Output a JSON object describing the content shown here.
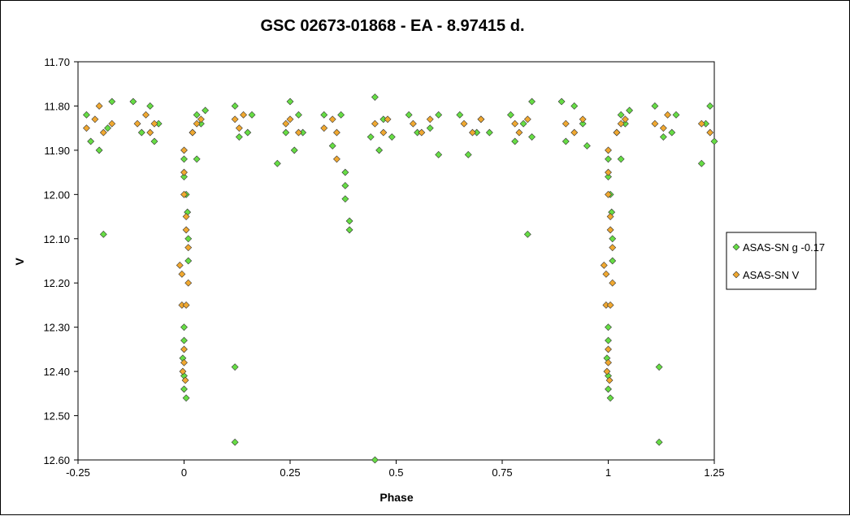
{
  "chart_data": {
    "type": "scatter",
    "title": "GSC 02673-01868  - EA - 8.97415 d.",
    "xlabel": "Phase",
    "ylabel": "V",
    "xlim": [
      -0.25,
      1.25
    ],
    "ylim": [
      11.7,
      12.6
    ],
    "y_inverted": true,
    "grid": false,
    "legend_position": "right",
    "x_tick_labels": [
      "-0.25",
      "0",
      "0.25",
      "0.5",
      "0.75",
      "1",
      "1.25"
    ],
    "y_tick_labels": [
      "11.70",
      "11.80",
      "11.90",
      "12.00",
      "12.10",
      "12.20",
      "12.30",
      "12.40",
      "12.50",
      "12.60"
    ],
    "series": [
      {
        "name": "ASAS-SN g -0.17",
        "color": "#66dd44",
        "marker": "diamond",
        "points": [
          [
            -0.23,
            11.82
          ],
          [
            -0.22,
            11.88
          ],
          [
            -0.2,
            11.9
          ],
          [
            -0.19,
            12.09
          ],
          [
            -0.18,
            11.85
          ],
          [
            -0.17,
            11.79
          ],
          [
            -0.12,
            11.79
          ],
          [
            -0.1,
            11.86
          ],
          [
            -0.08,
            11.8
          ],
          [
            -0.07,
            11.88
          ],
          [
            -0.06,
            11.84
          ],
          [
            0.0,
            11.92
          ],
          [
            0.0,
            11.96
          ],
          [
            0.005,
            12.0
          ],
          [
            0.008,
            12.04
          ],
          [
            0.01,
            12.1
          ],
          [
            0.01,
            12.15
          ],
          [
            0.0,
            12.3
          ],
          [
            0.0,
            12.33
          ],
          [
            -0.003,
            12.37
          ],
          [
            0.0,
            12.41
          ],
          [
            0.0,
            12.44
          ],
          [
            0.005,
            12.46
          ],
          [
            0.02,
            11.86
          ],
          [
            0.03,
            11.82
          ],
          [
            0.04,
            11.84
          ],
          [
            0.05,
            11.81
          ],
          [
            0.03,
            11.92
          ],
          [
            0.12,
            11.8
          ],
          [
            0.13,
            11.87
          ],
          [
            0.15,
            11.86
          ],
          [
            0.16,
            11.82
          ],
          [
            0.12,
            12.39
          ],
          [
            0.12,
            12.56
          ],
          [
            0.22,
            11.93
          ],
          [
            0.24,
            11.86
          ],
          [
            0.25,
            11.79
          ],
          [
            0.26,
            11.9
          ],
          [
            0.27,
            11.82
          ],
          [
            0.28,
            11.86
          ],
          [
            0.33,
            11.82
          ],
          [
            0.35,
            11.89
          ],
          [
            0.37,
            11.82
          ],
          [
            0.38,
            11.95
          ],
          [
            0.38,
            11.98
          ],
          [
            0.38,
            12.01
          ],
          [
            0.39,
            12.06
          ],
          [
            0.39,
            12.08
          ],
          [
            0.44,
            11.87
          ],
          [
            0.45,
            11.78
          ],
          [
            0.46,
            11.9
          ],
          [
            0.47,
            11.83
          ],
          [
            0.49,
            11.87
          ],
          [
            0.45,
            12.6
          ],
          [
            0.53,
            11.82
          ],
          [
            0.55,
            11.86
          ],
          [
            0.58,
            11.85
          ],
          [
            0.6,
            11.82
          ],
          [
            0.6,
            11.91
          ],
          [
            0.65,
            11.82
          ],
          [
            0.67,
            11.91
          ],
          [
            0.69,
            11.86
          ],
          [
            0.7,
            11.83
          ],
          [
            0.72,
            11.86
          ],
          [
            0.77,
            11.82
          ],
          [
            0.78,
            11.88
          ],
          [
            0.8,
            11.84
          ],
          [
            0.82,
            11.79
          ],
          [
            0.82,
            11.87
          ],
          [
            0.81,
            12.09
          ],
          [
            0.89,
            11.79
          ],
          [
            0.9,
            11.88
          ],
          [
            0.92,
            11.8
          ],
          [
            0.94,
            11.84
          ],
          [
            0.95,
            11.89
          ],
          [
            1.0,
            11.92
          ],
          [
            1.0,
            11.96
          ],
          [
            1.005,
            12.0
          ],
          [
            1.008,
            12.04
          ],
          [
            1.01,
            12.1
          ],
          [
            1.01,
            12.15
          ],
          [
            1.0,
            12.3
          ],
          [
            1.0,
            12.33
          ],
          [
            0.997,
            12.37
          ],
          [
            1.0,
            12.41
          ],
          [
            1.0,
            12.44
          ],
          [
            1.005,
            12.46
          ],
          [
            1.02,
            11.86
          ],
          [
            1.03,
            11.82
          ],
          [
            1.04,
            11.84
          ],
          [
            1.05,
            11.81
          ],
          [
            1.03,
            11.92
          ],
          [
            1.11,
            11.8
          ],
          [
            1.13,
            11.87
          ],
          [
            1.15,
            11.86
          ],
          [
            1.16,
            11.82
          ],
          [
            1.12,
            12.39
          ],
          [
            1.12,
            12.56
          ],
          [
            1.22,
            11.93
          ],
          [
            1.23,
            11.84
          ],
          [
            1.24,
            11.8
          ],
          [
            1.25,
            11.88
          ]
        ]
      },
      {
        "name": "ASAS-SN V",
        "color": "#f0a830",
        "marker": "diamond",
        "points": [
          [
            -0.23,
            11.85
          ],
          [
            -0.21,
            11.83
          ],
          [
            -0.2,
            11.8
          ],
          [
            -0.19,
            11.86
          ],
          [
            -0.17,
            11.84
          ],
          [
            -0.11,
            11.84
          ],
          [
            -0.09,
            11.82
          ],
          [
            -0.08,
            11.86
          ],
          [
            -0.07,
            11.84
          ],
          [
            0.0,
            11.9
          ],
          [
            0.0,
            11.95
          ],
          [
            0.0,
            12.0
          ],
          [
            0.005,
            12.05
          ],
          [
            0.005,
            12.08
          ],
          [
            0.01,
            12.12
          ],
          [
            -0.01,
            12.16
          ],
          [
            -0.005,
            12.18
          ],
          [
            0.01,
            12.2
          ],
          [
            -0.005,
            12.25
          ],
          [
            0.005,
            12.25
          ],
          [
            0.0,
            12.35
          ],
          [
            0.0,
            12.38
          ],
          [
            -0.003,
            12.4
          ],
          [
            0.003,
            12.42
          ],
          [
            0.02,
            11.86
          ],
          [
            0.03,
            11.84
          ],
          [
            0.04,
            11.83
          ],
          [
            0.12,
            11.83
          ],
          [
            0.13,
            11.85
          ],
          [
            0.14,
            11.82
          ],
          [
            0.24,
            11.84
          ],
          [
            0.25,
            11.83
          ],
          [
            0.27,
            11.86
          ],
          [
            0.33,
            11.85
          ],
          [
            0.35,
            11.83
          ],
          [
            0.36,
            11.86
          ],
          [
            0.36,
            11.92
          ],
          [
            0.45,
            11.84
          ],
          [
            0.47,
            11.86
          ],
          [
            0.48,
            11.83
          ],
          [
            0.54,
            11.84
          ],
          [
            0.56,
            11.86
          ],
          [
            0.58,
            11.83
          ],
          [
            0.66,
            11.84
          ],
          [
            0.68,
            11.86
          ],
          [
            0.7,
            11.83
          ],
          [
            0.78,
            11.84
          ],
          [
            0.79,
            11.86
          ],
          [
            0.81,
            11.83
          ],
          [
            0.9,
            11.84
          ],
          [
            0.92,
            11.86
          ],
          [
            0.94,
            11.83
          ],
          [
            1.0,
            11.9
          ],
          [
            1.0,
            11.95
          ],
          [
            1.0,
            12.0
          ],
          [
            1.005,
            12.05
          ],
          [
            1.005,
            12.08
          ],
          [
            1.01,
            12.12
          ],
          [
            0.99,
            12.16
          ],
          [
            0.995,
            12.18
          ],
          [
            1.01,
            12.2
          ],
          [
            0.995,
            12.25
          ],
          [
            1.005,
            12.25
          ],
          [
            1.0,
            12.35
          ],
          [
            1.0,
            12.38
          ],
          [
            0.997,
            12.4
          ],
          [
            1.003,
            12.42
          ],
          [
            1.02,
            11.86
          ],
          [
            1.03,
            11.84
          ],
          [
            1.04,
            11.83
          ],
          [
            1.11,
            11.84
          ],
          [
            1.13,
            11.85
          ],
          [
            1.14,
            11.82
          ],
          [
            1.22,
            11.84
          ],
          [
            1.24,
            11.86
          ]
        ]
      }
    ]
  }
}
